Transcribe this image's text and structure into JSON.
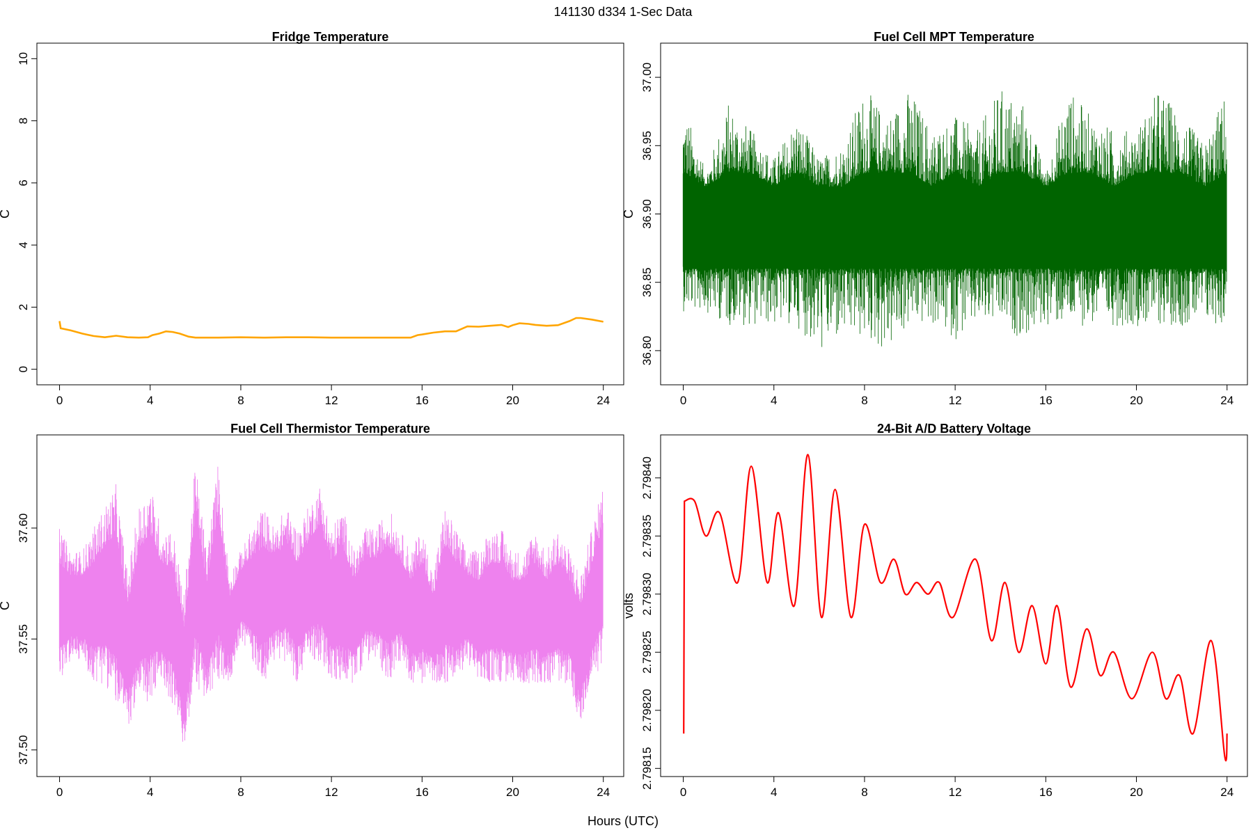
{
  "figure": {
    "title": "141130   d334   1-Sec Data",
    "common_xlabel": "Hours (UTC)"
  },
  "chart_data": [
    {
      "type": "line",
      "title": "Fridge Temperature",
      "xlabel": "",
      "ylabel": "C",
      "color": "#FFA500",
      "xlim": [
        -1,
        24.9
      ],
      "ylim": [
        -0.5,
        10.5
      ],
      "xticks": [
        0,
        4,
        8,
        12,
        16,
        20,
        24
      ],
      "yticks": [
        0,
        2,
        4,
        6,
        8,
        10
      ],
      "ytick_labels": [
        "0",
        "2",
        "4",
        "6",
        "8",
        "10"
      ],
      "series": [
        {
          "x": [
            0,
            0.05,
            0.5,
            1,
            1.5,
            2,
            2.5,
            3,
            3.5,
            3.9,
            4.1,
            4.4,
            4.7,
            5.0,
            5.3,
            5.7,
            6,
            7,
            8,
            9,
            10,
            11,
            12,
            13,
            14,
            15,
            15.5,
            15.8,
            16,
            16.5,
            17,
            17.5,
            18,
            18.5,
            19,
            19.5,
            19.8,
            20,
            20.3,
            20.7,
            21,
            21.5,
            22,
            22.5,
            22.8,
            23,
            23.5,
            24
          ],
          "y": [
            1.55,
            1.32,
            1.25,
            1.15,
            1.07,
            1.03,
            1.08,
            1.03,
            1.02,
            1.03,
            1.1,
            1.15,
            1.22,
            1.2,
            1.15,
            1.05,
            1.02,
            1.02,
            1.03,
            1.02,
            1.03,
            1.03,
            1.02,
            1.02,
            1.02,
            1.02,
            1.02,
            1.1,
            1.12,
            1.18,
            1.22,
            1.22,
            1.38,
            1.37,
            1.4,
            1.43,
            1.36,
            1.42,
            1.48,
            1.46,
            1.43,
            1.4,
            1.42,
            1.55,
            1.65,
            1.65,
            1.6,
            1.53
          ]
        }
      ]
    },
    {
      "type": "line",
      "title": "Fuel Cell MPT Temperature",
      "xlabel": "",
      "ylabel": "C",
      "color": "#006400",
      "xlim": [
        -1,
        24.9
      ],
      "ylim": [
        36.775,
        37.025
      ],
      "xticks": [
        0,
        4,
        8,
        12,
        16,
        20,
        24
      ],
      "yticks": [
        36.8,
        36.85,
        36.9,
        36.95,
        37.0
      ],
      "ytick_labels": [
        "36.80",
        "36.85",
        "36.90",
        "36.95",
        "37.00"
      ],
      "series": [
        {
          "x": [
            0,
            1,
            2,
            3,
            4,
            5,
            6,
            7,
            8,
            9,
            10,
            11,
            12,
            13,
            14,
            15,
            16,
            17,
            18,
            19,
            20,
            21,
            22,
            23,
            24
          ],
          "upper": [
            36.98,
            36.93,
            36.98,
            36.96,
            36.94,
            36.97,
            36.94,
            36.95,
            36.99,
            36.97,
            36.99,
            36.96,
            36.97,
            36.96,
            36.99,
            36.98,
            36.93,
            36.99,
            36.97,
            36.96,
            36.96,
            36.99,
            36.97,
            36.95,
            36.99
          ],
          "core_high": [
            36.93,
            36.92,
            36.93,
            36.93,
            36.92,
            36.93,
            36.92,
            36.92,
            36.93,
            36.93,
            36.93,
            36.92,
            36.93,
            36.92,
            36.93,
            36.93,
            36.92,
            36.93,
            36.93,
            36.92,
            36.93,
            36.93,
            36.93,
            36.92,
            36.93
          ],
          "core_low": [
            36.86,
            36.86,
            36.86,
            36.86,
            36.86,
            36.86,
            36.86,
            36.86,
            36.86,
            36.86,
            36.86,
            36.86,
            36.86,
            36.86,
            36.86,
            36.86,
            36.86,
            36.86,
            36.86,
            36.86,
            36.86,
            36.86,
            36.86,
            36.86,
            36.86
          ],
          "lower": [
            36.83,
            36.83,
            36.82,
            36.82,
            36.82,
            36.82,
            36.8,
            36.81,
            36.81,
            36.8,
            36.82,
            36.82,
            36.81,
            36.82,
            36.82,
            36.81,
            36.82,
            36.82,
            36.82,
            36.82,
            36.82,
            36.82,
            36.82,
            36.82,
            36.82
          ]
        }
      ]
    },
    {
      "type": "line",
      "title": "Fuel Cell Thermistor Temperature",
      "xlabel": "",
      "ylabel": "C",
      "color": "#EE82EE",
      "xlim": [
        -1,
        24.9
      ],
      "ylim": [
        37.488,
        37.642
      ],
      "xticks": [
        0,
        4,
        8,
        12,
        16,
        20,
        24
      ],
      "yticks": [
        37.5,
        37.55,
        37.6
      ],
      "ytick_labels": [
        "37.50",
        "37.55",
        "37.60"
      ],
      "series": [
        {
          "x": [
            0,
            0.5,
            1,
            1.5,
            2,
            2.5,
            3,
            3.5,
            4,
            4.5,
            5,
            5.5,
            6,
            6.5,
            7,
            7.5,
            8,
            8.5,
            9,
            9.5,
            10,
            10.5,
            11,
            11.5,
            12,
            12.5,
            13,
            13.5,
            14,
            14.5,
            15,
            15.5,
            16,
            16.5,
            17,
            17.5,
            18,
            18.5,
            19,
            19.5,
            20,
            20.5,
            21,
            21.5,
            22,
            22.5,
            23,
            23.5,
            24
          ],
          "upper": [
            37.6,
            37.59,
            37.59,
            37.6,
            37.61,
            37.62,
            37.58,
            37.61,
            37.62,
            37.6,
            37.6,
            37.57,
            37.63,
            37.59,
            37.63,
            37.58,
            37.59,
            37.6,
            37.61,
            37.6,
            37.61,
            37.6,
            37.61,
            37.62,
            37.6,
            37.61,
            37.59,
            37.6,
            37.6,
            37.61,
            37.6,
            37.59,
            37.6,
            37.58,
            37.61,
            37.6,
            37.59,
            37.59,
            37.6,
            37.6,
            37.59,
            37.59,
            37.6,
            37.59,
            37.6,
            37.59,
            37.58,
            37.6,
            37.62
          ],
          "lower": [
            37.53,
            37.54,
            37.54,
            37.53,
            37.53,
            37.52,
            37.51,
            37.52,
            37.52,
            37.53,
            37.52,
            37.5,
            37.53,
            37.52,
            37.53,
            37.53,
            37.55,
            37.54,
            37.53,
            37.54,
            37.54,
            37.53,
            37.54,
            37.54,
            37.53,
            37.53,
            37.53,
            37.54,
            37.54,
            37.53,
            37.54,
            37.53,
            37.53,
            37.53,
            37.53,
            37.53,
            37.54,
            37.53,
            37.53,
            37.53,
            37.53,
            37.53,
            37.53,
            37.53,
            37.53,
            37.53,
            37.51,
            37.53,
            37.54
          ]
        }
      ]
    },
    {
      "type": "line",
      "title": "24-Bit A/D Battery Voltage",
      "xlabel": "",
      "ylabel": "volts",
      "color": "#FF0000",
      "xlim": [
        -1,
        24.9
      ],
      "ylim": [
        2.798143,
        2.798437
      ],
      "xticks": [
        0,
        4,
        8,
        12,
        16,
        20,
        24
      ],
      "yticks": [
        2.79815,
        2.7982,
        2.79825,
        2.7983,
        2.79835,
        2.7984
      ],
      "ytick_labels": [
        "2.79815",
        "2.79820",
        "2.79825",
        "2.79830",
        "2.79835",
        "2.79840"
      ],
      "series": [
        {
          "x": [
            0.02,
            0.05,
            0.5,
            1.0,
            1.6,
            2.4,
            3.0,
            3.7,
            4.2,
            4.9,
            5.5,
            6.1,
            6.7,
            7.4,
            8.0,
            8.7,
            9.3,
            9.8,
            10.3,
            10.8,
            11.3,
            11.9,
            12.9,
            13.6,
            14.2,
            14.8,
            15.4,
            16.0,
            16.5,
            17.1,
            17.8,
            18.4,
            19.0,
            19.8,
            20.7,
            21.3,
            21.9,
            22.5,
            23.3,
            23.9,
            24.0
          ],
          "y": [
            2.79818,
            2.79838,
            2.79838,
            2.79835,
            2.79837,
            2.79831,
            2.79841,
            2.79831,
            2.79837,
            2.79829,
            2.79842,
            2.79828,
            2.79839,
            2.79828,
            2.79836,
            2.79831,
            2.79833,
            2.7983,
            2.79831,
            2.7983,
            2.79831,
            2.79828,
            2.79833,
            2.79826,
            2.79831,
            2.79825,
            2.79829,
            2.79824,
            2.79829,
            2.79822,
            2.79827,
            2.79823,
            2.79825,
            2.79821,
            2.79825,
            2.79821,
            2.79823,
            2.79818,
            2.79826,
            2.79816,
            2.79818
          ]
        }
      ]
    }
  ]
}
